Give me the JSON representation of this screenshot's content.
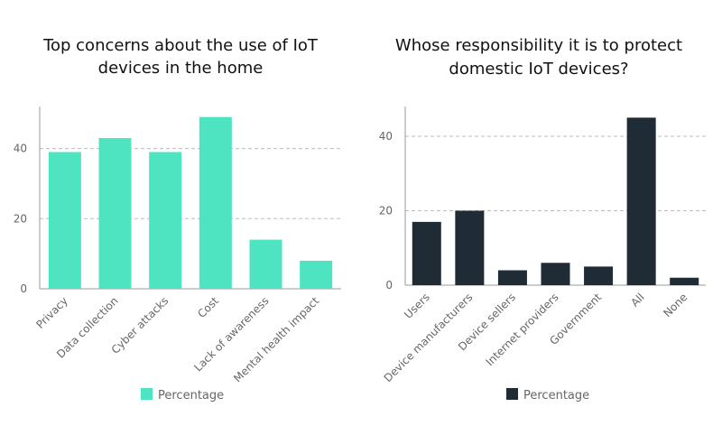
{
  "chart_data": [
    {
      "type": "bar",
      "title_lines": [
        "Top concerns about the use of IoT",
        "devices in the home"
      ],
      "categories": [
        "Privacy",
        "Data collection",
        "Cyber attacks",
        "Cost",
        "Lack of awareness",
        "Mental health impact"
      ],
      "series": [
        {
          "name": "Percentage",
          "values": [
            39,
            43,
            39,
            49,
            14,
            8
          ]
        }
      ],
      "ylim": [
        0,
        52
      ],
      "yticks": [
        0,
        20,
        40
      ],
      "grid": true,
      "legend": "bottom-center",
      "color": "#4ee3c1"
    },
    {
      "type": "bar",
      "title_lines": [
        "Whose responsibility it is to protect",
        "domestic IoT devices?"
      ],
      "categories": [
        "Users",
        "Device manufacturers",
        "Device sellers",
        "Internet providers",
        "Government",
        "All",
        "None"
      ],
      "series": [
        {
          "name": "Percentage",
          "values": [
            17,
            20,
            4,
            6,
            5,
            45,
            2
          ]
        }
      ],
      "ylim": [
        0,
        48
      ],
      "yticks": [
        0,
        20,
        40
      ],
      "grid": true,
      "legend": "bottom-center",
      "color": "#1f2b35"
    }
  ]
}
